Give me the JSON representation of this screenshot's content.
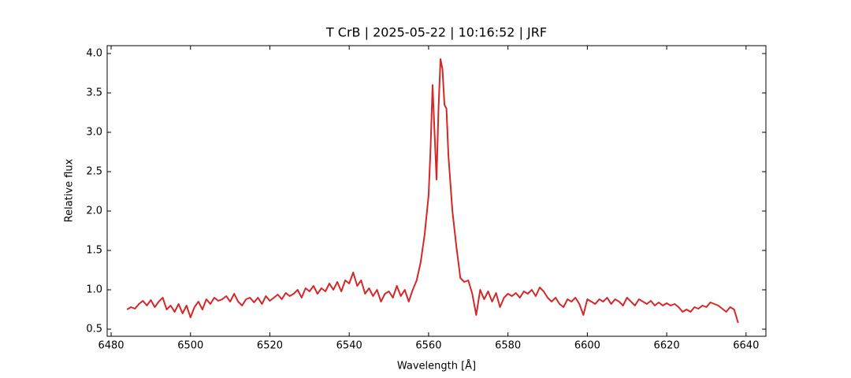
{
  "chart_data": {
    "type": "line",
    "title": "T CrB | 2025-05-22 | 10:16:52 | JRF",
    "xlabel": "Wavelength [Å]",
    "ylabel": "Relative flux",
    "color": "#d62728",
    "xlim": [
      6479,
      6645
    ],
    "ylim": [
      0.41,
      4.1
    ],
    "xticks": [
      6480,
      6500,
      6520,
      6540,
      6560,
      6580,
      6600,
      6620,
      6640
    ],
    "yticks": [
      0.5,
      {
        "value": 1,
        "label": "1.0"
      },
      1.5,
      {
        "value": 2,
        "label": "2.0"
      },
      2.5,
      {
        "value": 3,
        "label": "3.0"
      },
      3.5,
      {
        "value": 4,
        "label": "4.0"
      }
    ],
    "x": [
      6484,
      6485,
      6486,
      6487,
      6488,
      6489,
      6490,
      6491,
      6492,
      6493,
      6494,
      6495,
      6496,
      6497,
      6498,
      6499,
      6500,
      6501,
      6502,
      6503,
      6504,
      6505,
      6506,
      6507,
      6508,
      6509,
      6510,
      6511,
      6512,
      6513,
      6514,
      6515,
      6516,
      6517,
      6518,
      6519,
      6520,
      6521,
      6522,
      6523,
      6524,
      6525,
      6526,
      6527,
      6528,
      6529,
      6530,
      6531,
      6532,
      6533,
      6534,
      6535,
      6536,
      6537,
      6538,
      6539,
      6540,
      6541,
      6542,
      6543,
      6544,
      6545,
      6546,
      6547,
      6548,
      6549,
      6550,
      6551,
      6552,
      6553,
      6554,
      6555,
      6556,
      6557,
      6558,
      6559,
      6560,
      6560.5,
      6561,
      6561.5,
      6562,
      6562.5,
      6563,
      6563.5,
      6564,
      6564.5,
      6565,
      6566,
      6567,
      6568,
      6569,
      6570,
      6571,
      6572,
      6573,
      6574,
      6575,
      6576,
      6577,
      6578,
      6579,
      6580,
      6581,
      6582,
      6583,
      6584,
      6585,
      6586,
      6587,
      6588,
      6589,
      6590,
      6591,
      6592,
      6593,
      6594,
      6595,
      6596,
      6597,
      6598,
      6599,
      6600,
      6601,
      6602,
      6603,
      6604,
      6605,
      6606,
      6607,
      6608,
      6609,
      6610,
      6611,
      6612,
      6613,
      6614,
      6615,
      6616,
      6617,
      6618,
      6619,
      6620,
      6621,
      6622,
      6623,
      6624,
      6625,
      6626,
      6627,
      6628,
      6629,
      6630,
      6631,
      6632,
      6633,
      6634,
      6635,
      6636,
      6637,
      6638
    ],
    "values": [
      0.75,
      0.78,
      0.76,
      0.82,
      0.86,
      0.8,
      0.87,
      0.78,
      0.85,
      0.9,
      0.75,
      0.8,
      0.72,
      0.82,
      0.7,
      0.8,
      0.65,
      0.78,
      0.85,
      0.75,
      0.88,
      0.82,
      0.9,
      0.86,
      0.88,
      0.92,
      0.85,
      0.95,
      0.85,
      0.8,
      0.88,
      0.9,
      0.84,
      0.9,
      0.82,
      0.92,
      0.86,
      0.9,
      0.94,
      0.88,
      0.96,
      0.92,
      0.95,
      1.0,
      0.9,
      1.02,
      0.98,
      1.05,
      0.95,
      1.02,
      0.98,
      1.08,
      1.0,
      1.1,
      0.98,
      1.12,
      1.08,
      1.22,
      1.05,
      1.12,
      0.95,
      1.02,
      0.92,
      1.0,
      0.85,
      0.95,
      0.98,
      0.9,
      1.05,
      0.92,
      1.0,
      0.85,
      1.0,
      1.12,
      1.35,
      1.7,
      2.2,
      2.8,
      3.6,
      3.0,
      2.4,
      3.3,
      3.93,
      3.8,
      3.35,
      3.3,
      2.7,
      2.0,
      1.55,
      1.15,
      1.1,
      1.12,
      0.95,
      0.68,
      1.0,
      0.88,
      0.98,
      0.85,
      0.96,
      0.78,
      0.9,
      0.95,
      0.92,
      0.96,
      0.9,
      0.98,
      0.95,
      1.0,
      0.92,
      1.03,
      0.98,
      0.9,
      0.85,
      0.9,
      0.82,
      0.78,
      0.88,
      0.85,
      0.9,
      0.82,
      0.68,
      0.88,
      0.85,
      0.82,
      0.88,
      0.85,
      0.9,
      0.82,
      0.88,
      0.85,
      0.8,
      0.9,
      0.85,
      0.8,
      0.88,
      0.85,
      0.82,
      0.86,
      0.8,
      0.84,
      0.8,
      0.83,
      0.8,
      0.82,
      0.78,
      0.72,
      0.75,
      0.72,
      0.78,
      0.76,
      0.8,
      0.78,
      0.84,
      0.82,
      0.8,
      0.76,
      0.72,
      0.78,
      0.75,
      0.58
    ]
  }
}
